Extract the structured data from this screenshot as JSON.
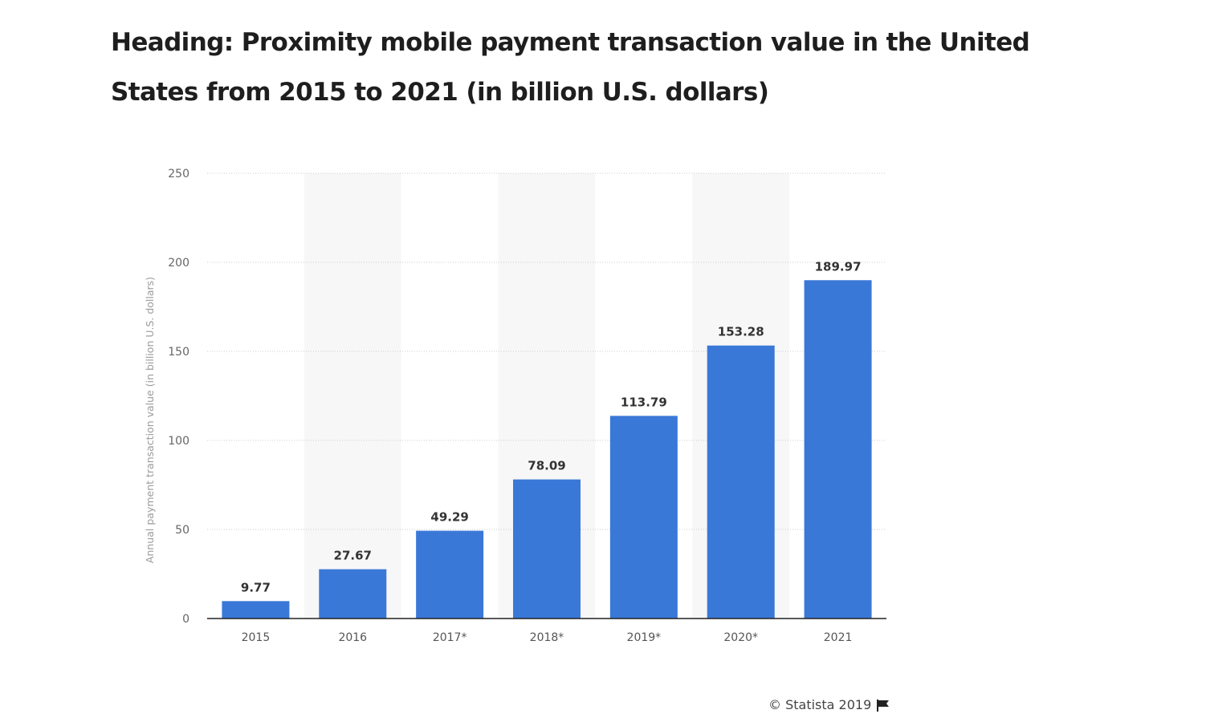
{
  "heading": "Heading: Proximity mobile payment transaction value in the United States from 2015 to 2021 (in billion U.S. dollars)",
  "footer": {
    "copyright": "© Statista 2019",
    "flag_icon": "flag-icon"
  },
  "colors": {
    "bar": "#3a78d8",
    "band": "#f7f7f7",
    "grid": "#cccccc",
    "axis": "#222222",
    "tick": "#666666",
    "ylabel": "#9a9a9a"
  },
  "chart_data": {
    "type": "bar",
    "categories": [
      "2015",
      "2016",
      "2017*",
      "2018*",
      "2019*",
      "2020*",
      "2021"
    ],
    "values": [
      9.77,
      27.67,
      49.29,
      78.09,
      113.79,
      153.28,
      189.97
    ],
    "value_labels": [
      "9.77",
      "27.67",
      "49.29",
      "78.09",
      "113.79",
      "153.28",
      "189.97"
    ],
    "title": "",
    "xlabel": "",
    "ylabel": "Annual payment transaction value (in billion U.S. dollars)",
    "ylim": [
      0,
      250
    ],
    "yticks": [
      0,
      50,
      100,
      150,
      200,
      250
    ],
    "grid": true,
    "legend": "none"
  }
}
